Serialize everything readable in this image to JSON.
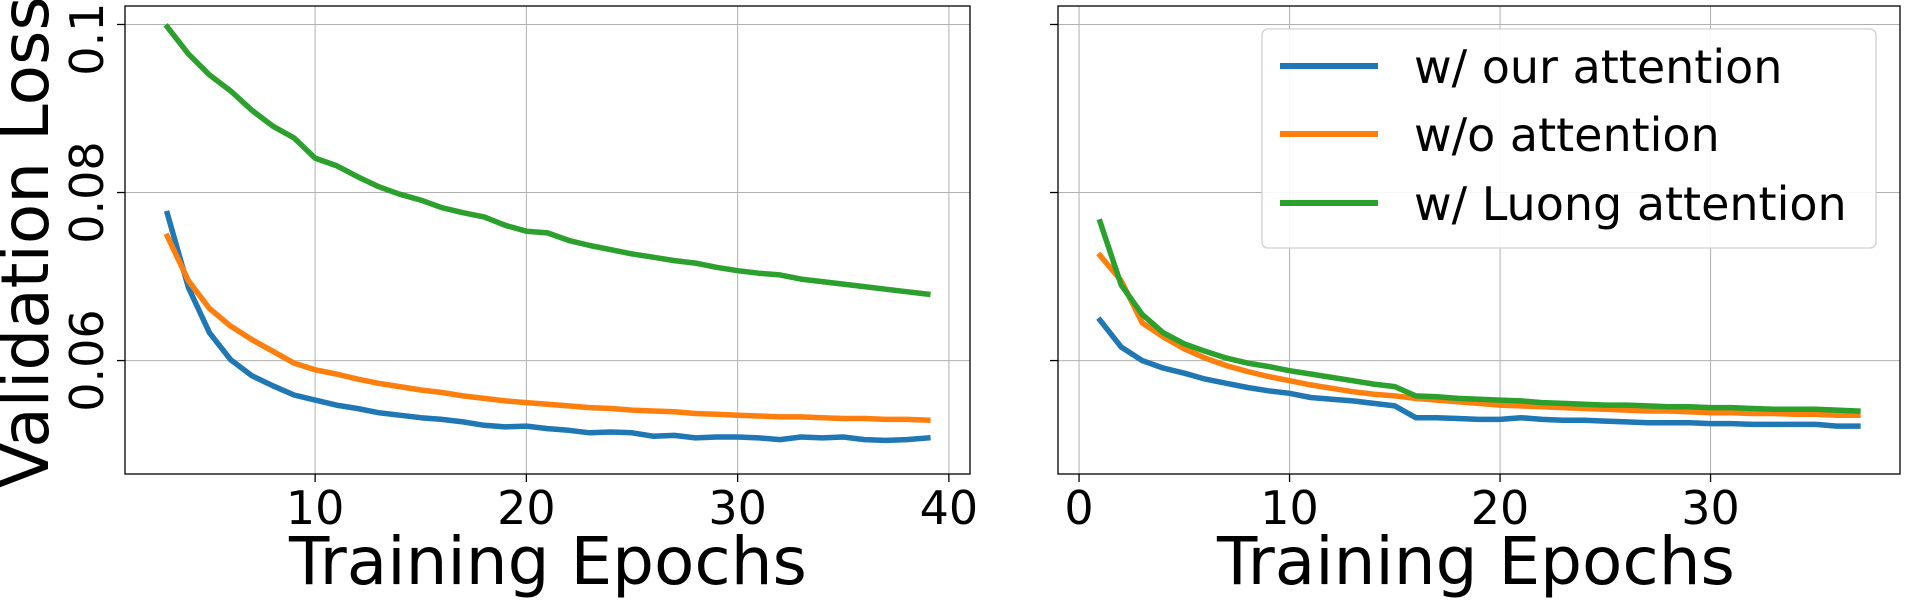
{
  "chart_data": [
    {
      "type": "line",
      "xlabel": "Training Epochs",
      "ylabel": "Validation Loss",
      "xlim": [
        1,
        41
      ],
      "ylim": [
        0.0465,
        0.1022
      ],
      "xticks": [
        10,
        20,
        30,
        40
      ],
      "yticks": [
        0.06,
        0.08,
        0.1
      ],
      "yticklabels": [
        "0.06",
        "0.08",
        "0.10"
      ],
      "grid": true,
      "series": [
        {
          "name": "w/ our attention",
          "color": "#1f77b4",
          "x": [
            3,
            4,
            5,
            6,
            7,
            8,
            9,
            10,
            11,
            12,
            13,
            14,
            15,
            16,
            17,
            18,
            19,
            20,
            21,
            22,
            23,
            24,
            25,
            26,
            27,
            28,
            29,
            30,
            31,
            32,
            33,
            34,
            35,
            36,
            37,
            38,
            39
          ],
          "y": [
            0.0775,
            0.0687,
            0.0633,
            0.0601,
            0.0582,
            0.057,
            0.0559,
            0.0553,
            0.0547,
            0.0543,
            0.0538,
            0.0535,
            0.0532,
            0.053,
            0.0527,
            0.0523,
            0.0521,
            0.0522,
            0.0519,
            0.0517,
            0.0514,
            0.0515,
            0.0514,
            0.051,
            0.0511,
            0.0508,
            0.0509,
            0.0509,
            0.0508,
            0.0506,
            0.0509,
            0.0508,
            0.0509,
            0.0506,
            0.0505,
            0.0506,
            0.0508
          ]
        },
        {
          "name": "w/o attention",
          "color": "#ff7f0e",
          "x": [
            3,
            4,
            5,
            6,
            7,
            8,
            9,
            10,
            11,
            12,
            13,
            14,
            15,
            16,
            17,
            18,
            19,
            20,
            21,
            22,
            23,
            24,
            25,
            26,
            27,
            28,
            29,
            30,
            31,
            32,
            33,
            34,
            35,
            36,
            37,
            38,
            39
          ],
          "y": [
            0.0748,
            0.0695,
            0.0662,
            0.0641,
            0.0625,
            0.0611,
            0.0597,
            0.0589,
            0.0584,
            0.0578,
            0.0573,
            0.0569,
            0.0565,
            0.0562,
            0.0558,
            0.0555,
            0.0552,
            0.055,
            0.0548,
            0.0546,
            0.0544,
            0.0543,
            0.0541,
            0.054,
            0.0539,
            0.0537,
            0.0536,
            0.0535,
            0.0534,
            0.0533,
            0.0533,
            0.0532,
            0.0531,
            0.0531,
            0.053,
            0.053,
            0.0529
          ]
        },
        {
          "name": "w/ Luong attention",
          "color": "#2ca02c",
          "x": [
            3,
            4,
            5,
            6,
            7,
            8,
            9,
            10,
            11,
            12,
            13,
            14,
            15,
            16,
            17,
            18,
            19,
            20,
            21,
            22,
            23,
            24,
            25,
            26,
            27,
            28,
            29,
            30,
            31,
            32,
            33,
            34,
            35,
            36,
            37,
            38,
            39
          ],
          "y": [
            0.0997,
            0.0965,
            0.094,
            0.0921,
            0.0898,
            0.0879,
            0.0865,
            0.0841,
            0.0832,
            0.0819,
            0.0807,
            0.0798,
            0.0791,
            0.0782,
            0.0776,
            0.0771,
            0.0761,
            0.0754,
            0.0752,
            0.0743,
            0.0737,
            0.0732,
            0.0727,
            0.0723,
            0.0719,
            0.0716,
            0.0711,
            0.0707,
            0.0704,
            0.0702,
            0.0697,
            0.0694,
            0.0691,
            0.0688,
            0.0685,
            0.0682,
            0.0679
          ]
        }
      ]
    },
    {
      "type": "line",
      "xlabel": "Training Epochs",
      "ylabel": "",
      "xlim": [
        -1,
        39
      ],
      "ylim": [
        0.0465,
        0.1022
      ],
      "xticks": [
        0,
        10,
        20,
        30
      ],
      "yticks": [
        0.06,
        0.08,
        0.1
      ],
      "grid": true,
      "legend": {
        "position": "top-right",
        "entries": [
          "w/ our attention",
          "w/o attention",
          "w/ Luong attention"
        ]
      },
      "series": [
        {
          "name": "w/ our attention",
          "color": "#1f77b4",
          "x": [
            1,
            2,
            3,
            4,
            5,
            6,
            7,
            8,
            9,
            10,
            11,
            12,
            13,
            14,
            15,
            16,
            17,
            18,
            19,
            20,
            21,
            22,
            23,
            24,
            25,
            26,
            27,
            28,
            29,
            30,
            31,
            32,
            33,
            34,
            35,
            36,
            37
          ],
          "y": [
            0.0648,
            0.0616,
            0.06,
            0.0591,
            0.0585,
            0.0578,
            0.0573,
            0.0568,
            0.0564,
            0.0561,
            0.0556,
            0.0554,
            0.0552,
            0.0549,
            0.0546,
            0.0532,
            0.0532,
            0.0531,
            0.053,
            0.053,
            0.0532,
            0.053,
            0.0529,
            0.0529,
            0.0528,
            0.0527,
            0.0526,
            0.0526,
            0.0526,
            0.0525,
            0.0525,
            0.0524,
            0.0524,
            0.0524,
            0.0524,
            0.0522,
            0.0522
          ]
        },
        {
          "name": "w/o attention",
          "color": "#ff7f0e",
          "x": [
            1,
            2,
            3,
            4,
            5,
            6,
            7,
            8,
            9,
            10,
            11,
            12,
            13,
            14,
            15,
            16,
            17,
            18,
            19,
            20,
            21,
            22,
            23,
            24,
            25,
            26,
            27,
            28,
            29,
            30,
            31,
            32,
            33,
            34,
            35,
            36,
            37
          ],
          "y": [
            0.0725,
            0.0695,
            0.0645,
            0.0628,
            0.0614,
            0.0603,
            0.0594,
            0.0587,
            0.0581,
            0.0576,
            0.0571,
            0.0567,
            0.0563,
            0.056,
            0.0558,
            0.0555,
            0.0553,
            0.0551,
            0.0549,
            0.0547,
            0.0546,
            0.0545,
            0.0544,
            0.0543,
            0.0542,
            0.0541,
            0.054,
            0.054,
            0.0539,
            0.0538,
            0.0538,
            0.0537,
            0.0537,
            0.0536,
            0.0536,
            0.0535,
            0.0535
          ]
        },
        {
          "name": "w/ Luong attention",
          "color": "#2ca02c",
          "x": [
            1,
            2,
            3,
            4,
            5,
            6,
            7,
            8,
            9,
            10,
            11,
            12,
            13,
            14,
            15,
            16,
            17,
            18,
            19,
            20,
            21,
            22,
            23,
            24,
            25,
            26,
            27,
            28,
            29,
            30,
            31,
            32,
            33,
            34,
            35,
            36,
            37
          ],
          "y": [
            0.0765,
            0.069,
            0.0655,
            0.0633,
            0.062,
            0.0611,
            0.0603,
            0.0597,
            0.0593,
            0.0588,
            0.0584,
            0.058,
            0.0576,
            0.0572,
            0.0569,
            0.0558,
            0.0557,
            0.0555,
            0.0554,
            0.0553,
            0.0552,
            0.055,
            0.0549,
            0.0548,
            0.0547,
            0.0547,
            0.0546,
            0.0545,
            0.0545,
            0.0544,
            0.0544,
            0.0543,
            0.0542,
            0.0542,
            0.0542,
            0.0541,
            0.054
          ]
        }
      ]
    }
  ]
}
